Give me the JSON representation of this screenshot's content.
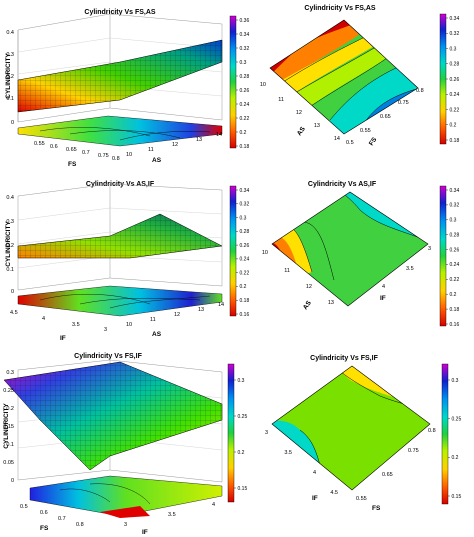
{
  "chart_data": [
    {
      "type": "surface",
      "title": "Cylindricity Vs FS,AS",
      "zlabel": "CYLINDRICITY",
      "xlabel": "FS",
      "ylabel": "AS",
      "z_ticks": [
        "0",
        "0.1",
        "0.2",
        "0.3",
        "0.4"
      ],
      "x_ticks": [
        "0.55",
        "0.6",
        "0.65",
        "0.7",
        "0.75",
        "0.8"
      ],
      "y_ticks": [
        "10",
        "11",
        "12",
        "13",
        "14"
      ],
      "colorbar_ticks": [
        "0.36",
        "0.34",
        "0.32",
        "0.3",
        "0.28",
        "0.26",
        "0.24",
        "0.22",
        "0.2",
        "0.18"
      ],
      "zlim": [
        0,
        0.4
      ]
    },
    {
      "type": "contour",
      "title": "Cylindricity Vs FS,AS",
      "xlabel": "AS",
      "ylabel": "FS",
      "x_ticks": [
        "10",
        "11",
        "12",
        "13",
        "14"
      ],
      "y_ticks": [
        "0.5",
        "0.55",
        "0.65",
        "0.75",
        "0.8"
      ],
      "colorbar_ticks": [
        "0.34",
        "0.32",
        "0.3",
        "0.28",
        "0.26",
        "0.24",
        "0.22",
        "0.2",
        "0.18"
      ]
    },
    {
      "type": "surface",
      "title": "Cylindricity Vs AS,IF",
      "zlabel": "CYLINDRICITY",
      "xlabel": "IF",
      "ylabel": "AS",
      "z_ticks": [
        "0",
        "0.1",
        "0.2",
        "0.3",
        "0.4"
      ],
      "x_ticks": [
        "4.5",
        "4",
        "3.5",
        "3"
      ],
      "y_ticks": [
        "10",
        "11",
        "12",
        "13",
        "14"
      ],
      "colorbar_ticks": [
        "0.34",
        "0.32",
        "0.3",
        "0.28",
        "0.26",
        "0.24",
        "0.22",
        "0.2",
        "0.18",
        "0.16"
      ],
      "zlim": [
        0,
        0.4
      ]
    },
    {
      "type": "contour",
      "title": "Cylindricity Vs AS,IF",
      "xlabel": "AS",
      "ylabel": "IF",
      "x_ticks": [
        "10",
        "11",
        "12",
        "13"
      ],
      "y_ticks": [
        "3",
        "3.5",
        "4"
      ],
      "colorbar_ticks": [
        "0.34",
        "0.32",
        "0.3",
        "0.28",
        "0.26",
        "0.24",
        "0.22",
        "0.2",
        "0.18",
        "0.16"
      ]
    },
    {
      "type": "surface",
      "title": "Cylindricity Vs FS,IF",
      "zlabel": "CYLINDRICITY",
      "xlabel": "IF",
      "ylabel": "FS",
      "z_ticks": [
        "0",
        "0.05",
        "0.1",
        "0.15",
        "0.2",
        "0.25",
        "0.3"
      ],
      "x_ticks": [
        "3",
        "3.5",
        "4"
      ],
      "y_ticks": [
        "0.5",
        "0.6",
        "0.7",
        "0.8"
      ],
      "colorbar_ticks": [
        "0.3",
        "0.25",
        "0.2",
        "0.15"
      ],
      "zlim": [
        0,
        0.3
      ]
    },
    {
      "type": "contour",
      "title": "Cylindricity Vs FS,IF",
      "xlabel": "IF",
      "ylabel": "FS",
      "x_ticks": [
        "3",
        "3.5",
        "4",
        "4.5"
      ],
      "y_ticks": [
        "0.55",
        "0.65",
        "0.75",
        "0.8"
      ],
      "colorbar_ticks": [
        "0.3",
        "0.25",
        "0.2",
        "0.15"
      ]
    }
  ]
}
